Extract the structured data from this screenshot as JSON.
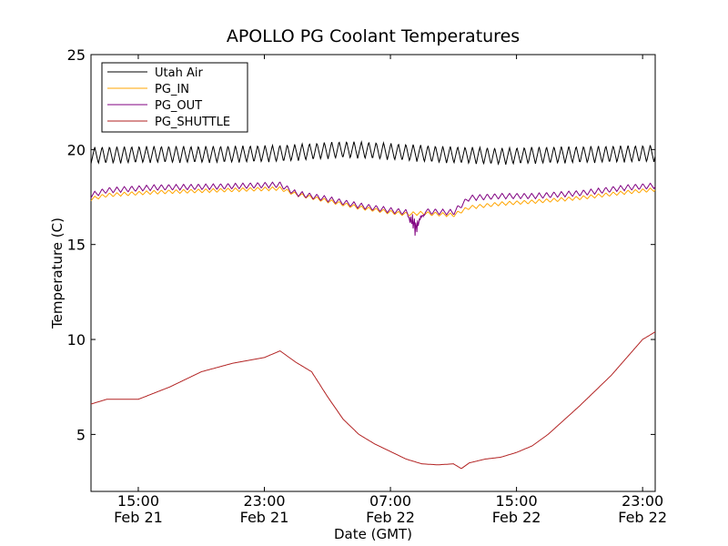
{
  "chart_data": {
    "type": "line",
    "title": "APOLLO PG Coolant Temperatures",
    "xlabel": "Date (GMT)",
    "ylabel": "Temperature (C)",
    "xlim": [
      12.0,
      47.8
    ],
    "ylim": [
      2,
      25
    ],
    "x_unit": "hours since Feb 21 00:00 GMT",
    "yticks": [
      5,
      10,
      15,
      20,
      25
    ],
    "xticks": [
      {
        "x": 15,
        "time": "15:00",
        "date": "Feb 21"
      },
      {
        "x": 23,
        "time": "23:00",
        "date": "Feb 21"
      },
      {
        "x": 31,
        "time": "07:00",
        "date": "Feb 22"
      },
      {
        "x": 39,
        "time": "15:00",
        "date": "Feb 22"
      },
      {
        "x": 47,
        "time": "23:00",
        "date": "Feb 22"
      }
    ],
    "grid": false,
    "legend_position": "top-left",
    "series": [
      {
        "name": "Utah Air",
        "color": "#000000",
        "x": [
          12,
          16,
          20,
          24,
          26,
          28,
          30,
          32,
          34,
          36,
          38,
          40,
          44,
          47.8
        ],
        "y": [
          19.7,
          19.75,
          19.75,
          19.8,
          19.9,
          20.0,
          19.95,
          19.85,
          19.75,
          19.7,
          19.65,
          19.7,
          19.75,
          19.8
        ],
        "oscillation": {
          "amplitude": 0.45,
          "period_hours": 0.47
        }
      },
      {
        "name": "PG_IN",
        "color": "#ffa500",
        "x": [
          12,
          13,
          16,
          20,
          24,
          25,
          27,
          29,
          31,
          32,
          33,
          35,
          36,
          38,
          40,
          43,
          46,
          47.8
        ],
        "y": [
          17.4,
          17.6,
          17.75,
          17.85,
          17.95,
          17.65,
          17.3,
          16.95,
          16.7,
          16.6,
          16.65,
          16.55,
          16.95,
          17.15,
          17.25,
          17.45,
          17.75,
          17.9
        ],
        "oscillation": {
          "amplitude": 0.1,
          "period_hours": 0.47
        }
      },
      {
        "name": "PG_OUT",
        "color": "#800080",
        "x": [
          12,
          13,
          16,
          20,
          24,
          25,
          27,
          29,
          31,
          32,
          33,
          35,
          36,
          38,
          40,
          43,
          46,
          47.8
        ],
        "y": [
          17.6,
          17.85,
          18.0,
          18.05,
          18.15,
          17.7,
          17.4,
          17.05,
          16.8,
          16.7,
          16.75,
          16.7,
          17.45,
          17.55,
          17.55,
          17.7,
          18.0,
          18.1
        ],
        "oscillation": {
          "amplitude": 0.15,
          "period_hours": 0.47
        },
        "dip": {
          "x_start": 32.0,
          "x_end": 33.2,
          "min": 15.2
        }
      },
      {
        "name": "PG_SHUTTLE",
        "color": "#b22222",
        "x": [
          12,
          13,
          15,
          17,
          19,
          21,
          23,
          24,
          25,
          26,
          27,
          28,
          29,
          30,
          31,
          32,
          33,
          34,
          35,
          35.5,
          36,
          37,
          38,
          39,
          40,
          41,
          43,
          45,
          47,
          47.8
        ],
        "y": [
          6.6,
          6.85,
          6.85,
          7.5,
          8.3,
          8.75,
          9.05,
          9.4,
          8.8,
          8.3,
          7.0,
          5.8,
          5.0,
          4.5,
          4.1,
          3.7,
          3.45,
          3.4,
          3.45,
          3.2,
          3.5,
          3.7,
          3.8,
          4.05,
          4.4,
          5.0,
          6.5,
          8.1,
          10.0,
          10.4
        ]
      }
    ]
  }
}
